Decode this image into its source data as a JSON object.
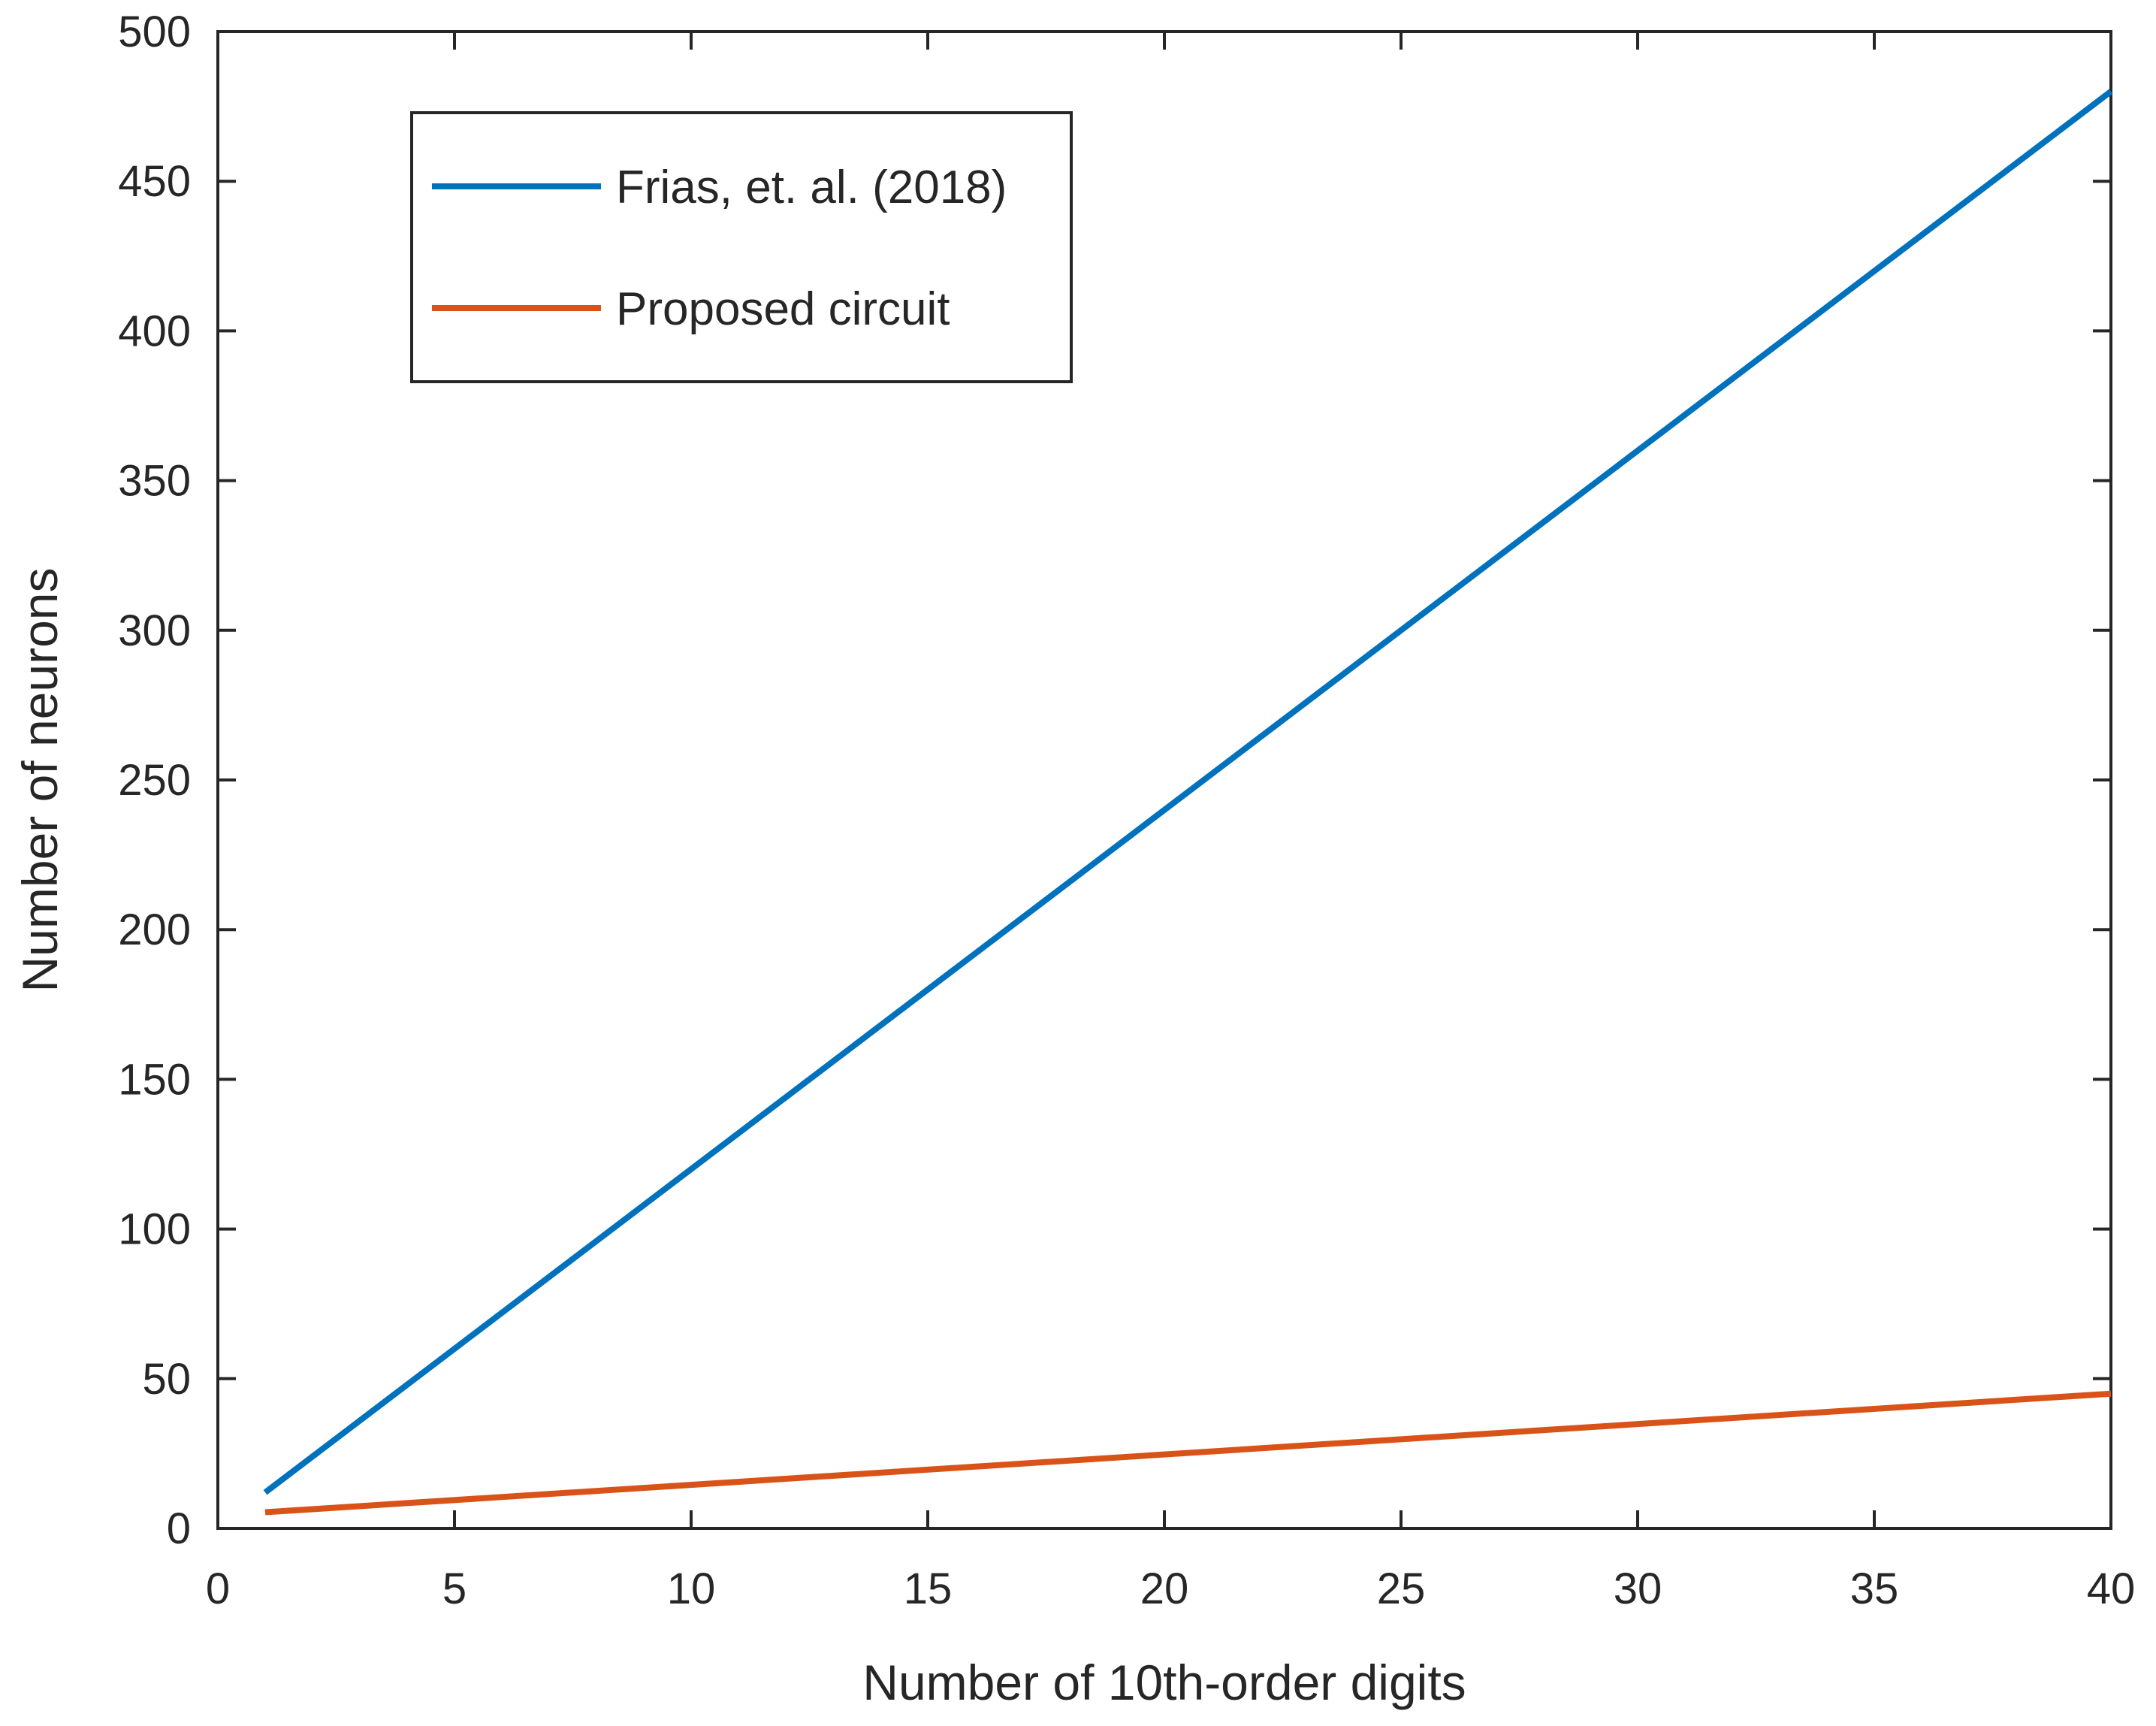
{
  "chart_data": {
    "type": "line",
    "xlabel": "Number of 10th-order digits",
    "ylabel": "Number of neurons",
    "xlim": [
      0,
      40
    ],
    "ylim": [
      0,
      500
    ],
    "xticks": [
      0,
      5,
      10,
      15,
      20,
      25,
      30,
      35,
      40
    ],
    "yticks": [
      0,
      50,
      100,
      150,
      200,
      250,
      300,
      350,
      400,
      450,
      500
    ],
    "grid": false,
    "legend_position": "top-left",
    "series": [
      {
        "name": "Frias, et. al. (2018)",
        "color": "#0072BD",
        "x": [
          1,
          40
        ],
        "y": [
          12,
          480
        ]
      },
      {
        "name": "Proposed circuit",
        "color": "#D95319",
        "x": [
          1,
          40
        ],
        "y": [
          5.4,
          45
        ]
      }
    ]
  }
}
